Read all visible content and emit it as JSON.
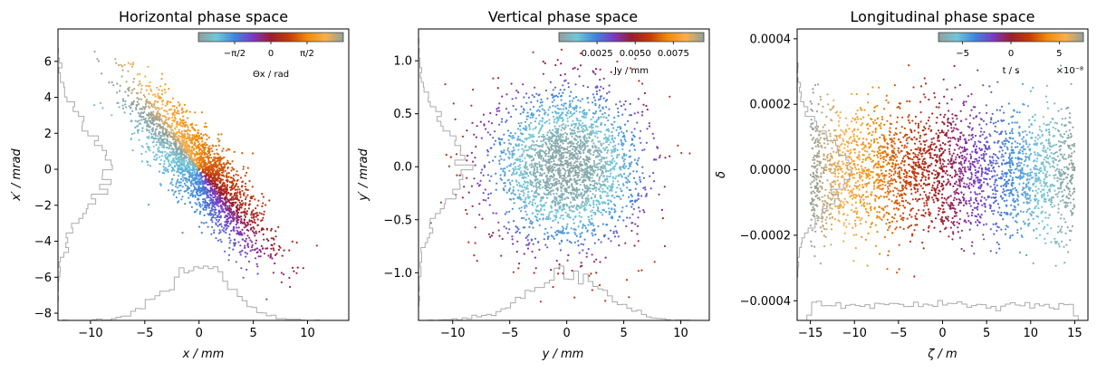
{
  "figure": {
    "colormap": [
      "#8f9f9c",
      "#73c6d6",
      "#3f86dc",
      "#7b3ac4",
      "#9b1d2e",
      "#c43a08",
      "#f08a0a",
      "#f8b04a",
      "#8f9f9c"
    ],
    "hist_color": "#aaaaaa"
  },
  "chart_data": [
    {
      "type": "scatter",
      "title": "Horizontal phase space",
      "xlabel": "x / mm",
      "ylabel": "x′ / mrad",
      "xlim": [
        -13,
        13.8
      ],
      "ylim": [
        -8.4,
        7.8
      ],
      "xticks": [
        -10,
        -5,
        0,
        5,
        10
      ],
      "yticks": [
        -8,
        -6,
        -4,
        -2,
        0,
        2,
        4,
        6
      ],
      "xtick_labels": [
        "−10",
        "−5",
        "0",
        "5",
        "10"
      ],
      "ytick_labels": [
        "−8",
        "−6",
        "−4",
        "−2",
        "0",
        "2",
        "4",
        "6"
      ],
      "grid": false,
      "distribution": {
        "n_points": 2600,
        "sigma_x": 3.0,
        "sigma_xp": 2.2,
        "correlation": -0.85,
        "color_by": "phase"
      },
      "colorbar": {
        "label": "Θx / rad",
        "ticks": [
          "−π/2",
          "0",
          "π/2"
        ],
        "tick_values": [
          -1.5708,
          0,
          1.5708
        ],
        "range": [
          -3.1416,
          3.1416
        ],
        "placement": "top-right"
      },
      "histograms": [
        "x (bottom)",
        "x′ (left)"
      ]
    },
    {
      "type": "scatter",
      "title": "Vertical phase space",
      "xlabel": "y / mm",
      "ylabel": "y′ / mrad",
      "xlim": [
        -13,
        12.5
      ],
      "ylim": [
        -1.45,
        1.3
      ],
      "xticks": [
        -10,
        -5,
        0,
        5,
        10
      ],
      "yticks": [
        -1.0,
        -0.5,
        0.0,
        0.5,
        1.0
      ],
      "xtick_labels": [
        "−10",
        "−5",
        "0",
        "5",
        "10"
      ],
      "ytick_labels": [
        "−1.0",
        "−0.5",
        "0.0",
        "0.5",
        "1.0"
      ],
      "grid": false,
      "distribution": {
        "n_points": 2600,
        "sigma_x": 3.3,
        "sigma_xp": 0.36,
        "correlation": 0.0,
        "color_by": "action"
      },
      "colorbar": {
        "label": "Jy / mm",
        "ticks": [
          "0.0025",
          "0.0050",
          "0.0075"
        ],
        "tick_values": [
          0.0025,
          0.005,
          0.0075
        ],
        "range": [
          0,
          0.0095
        ],
        "placement": "top-right"
      },
      "histograms": [
        "y (bottom)",
        "y′ (left)"
      ]
    },
    {
      "type": "scatter",
      "title": "Longitudinal phase space",
      "xlabel": "ζ / m",
      "ylabel": "δ",
      "xlim": [
        -16.5,
        16.5
      ],
      "ylim": [
        -0.00046,
        0.00043
      ],
      "xticks": [
        -15,
        -10,
        -5,
        0,
        5,
        10,
        15
      ],
      "yticks": [
        -0.0004,
        -0.0002,
        0.0,
        0.0002,
        0.0004
      ],
      "xtick_labels": [
        "−15",
        "−10",
        "−5",
        "0",
        "5",
        "10",
        "15"
      ],
      "ytick_labels": [
        "−0.0004",
        "−0.0002",
        "0.0000",
        "0.0002",
        "0.0004"
      ],
      "grid": false,
      "distribution": {
        "n_points": 3000,
        "zeta_range": [
          -15,
          15
        ],
        "sigma_delta": 0.0001,
        "color_by": "time"
      },
      "colorbar": {
        "label": "t / s",
        "ticks": [
          "−5",
          "0",
          "5"
        ],
        "tick_values": [
          -5,
          0,
          5
        ],
        "range": [
          -7.5,
          7.5
        ],
        "offset_text": "×10⁻⁸",
        "placement": "top-right"
      },
      "histograms": [
        "ζ (bottom)",
        "δ (left)"
      ]
    }
  ]
}
